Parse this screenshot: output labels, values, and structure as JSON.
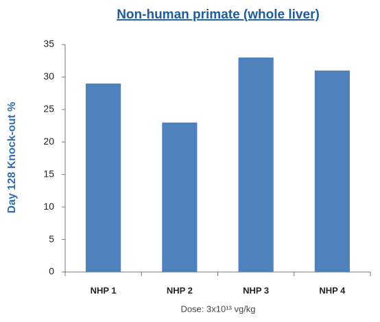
{
  "chart_data": {
    "type": "bar",
    "title": "Non-human primate (whole liver)",
    "y_label": "Day 128 Knock-out %",
    "x_label": "Dose: 3x10¹³ vg/kg",
    "categories": [
      "NHP 1",
      "NHP 2",
      "NHP 3",
      "NHP 4"
    ],
    "values": [
      29,
      23,
      33,
      31
    ],
    "color": "#4f81bd",
    "ylim": [
      0,
      35
    ],
    "yticks": [
      0,
      5,
      10,
      15,
      20,
      25,
      30,
      35
    ],
    "grid": false
  }
}
